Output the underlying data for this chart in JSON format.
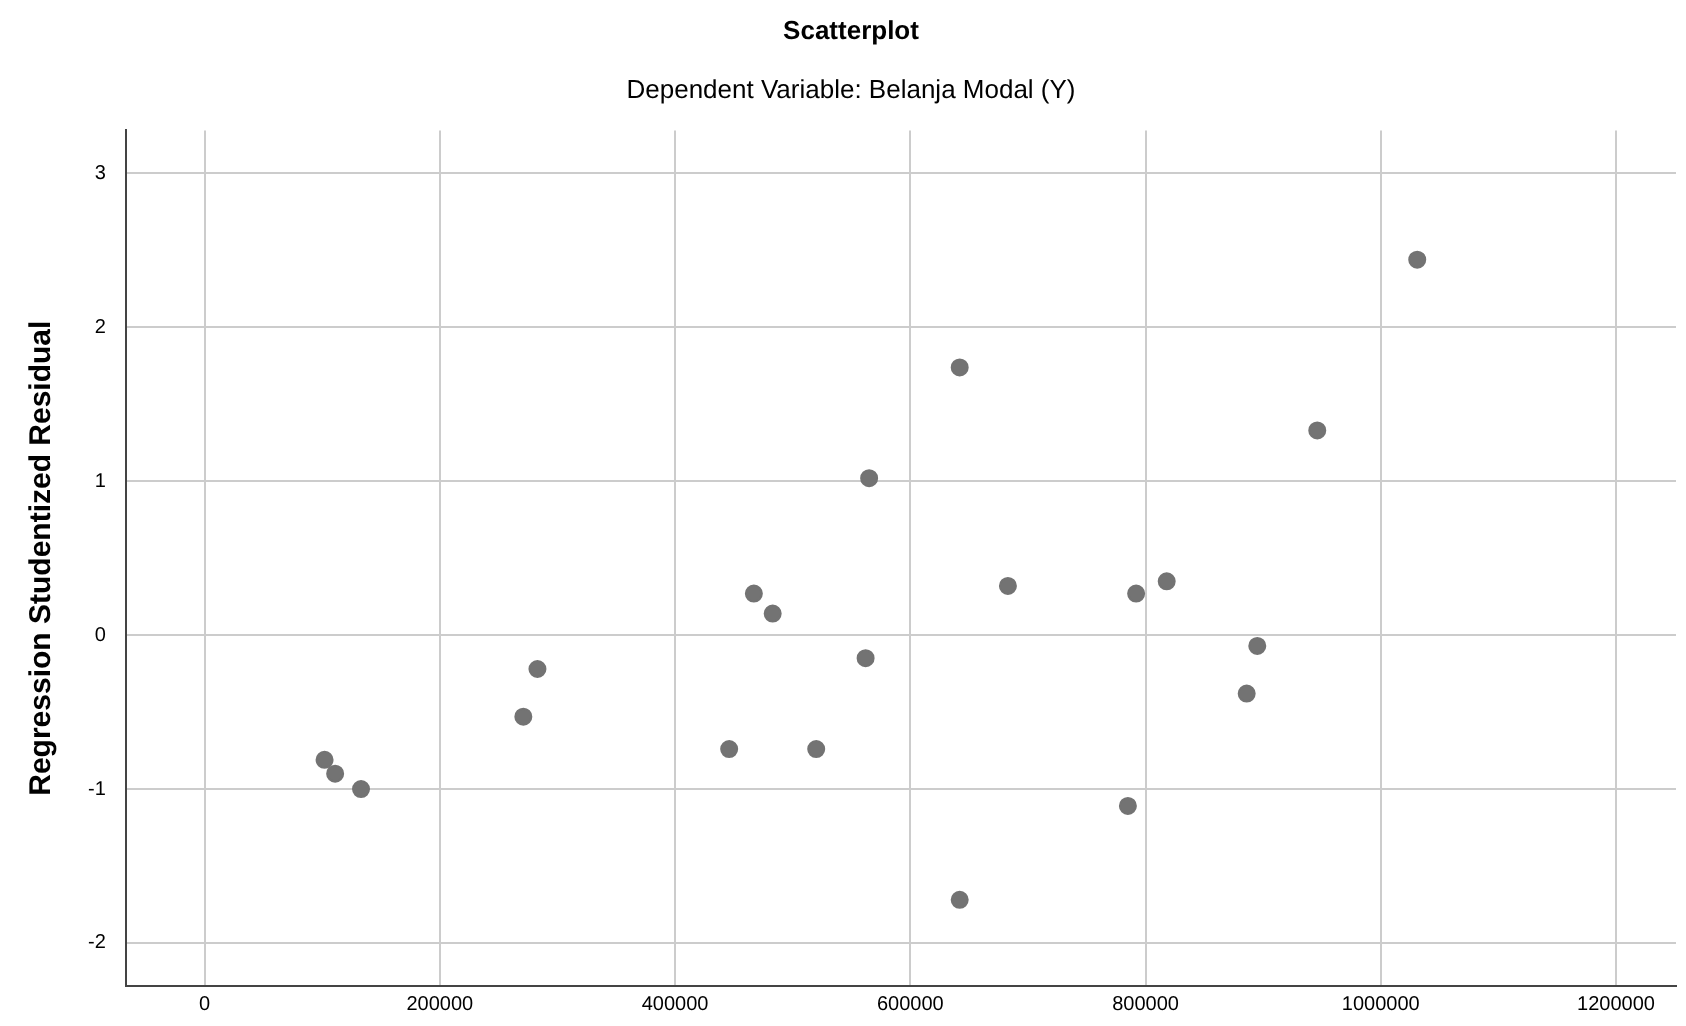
{
  "chart_data": {
    "type": "scatter",
    "title": "Scatterplot",
    "subtitle": "Dependent Variable: Belanja Modal (Y)",
    "ylabel": "Regression Studentized Residual",
    "x": [
      102000,
      111000,
      133000,
      271000,
      283000,
      446000,
      467000,
      483000,
      520000,
      562000,
      565000,
      642000,
      683000,
      642000,
      792000,
      818000,
      785000,
      895000,
      886000,
      946000,
      1031000
    ],
    "series": [
      {
        "color": "#737373",
        "values": [
          -0.81,
          -0.9,
          -1.0,
          -0.53,
          -0.22,
          -0.74,
          0.27,
          0.14,
          -0.74,
          -0.15,
          1.02,
          1.74,
          0.32,
          -1.72,
          0.27,
          0.35,
          -1.11,
          -0.07,
          -0.38,
          1.33,
          2.44
        ]
      }
    ],
    "xlim": [
      -67000,
      1251000
    ],
    "xticks": [
      0,
      200000,
      400000,
      600000,
      800000,
      1000000,
      1200000
    ],
    "ylim": [
      -2.28,
      3.28
    ],
    "yticks": [
      -2,
      -1,
      0,
      1,
      2,
      3
    ],
    "grid": true,
    "marker": "circle",
    "legend": false
  }
}
